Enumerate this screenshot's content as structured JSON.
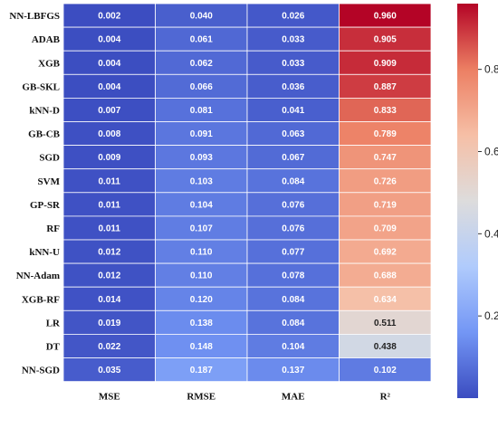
{
  "chart_data": {
    "type": "heatmap",
    "rows": [
      "NN-LBFGS",
      "ADAB",
      "XGB",
      "GB-SKL",
      "kNN-D",
      "GB-CB",
      "SGD",
      "SVM",
      "GP-SR",
      "RF",
      "kNN-U",
      "NN-Adam",
      "XGB-RF",
      "LR",
      "DT",
      "NN-SGD"
    ],
    "columns": [
      "MSE",
      "RMSE",
      "MAE",
      "R²"
    ],
    "values": [
      [
        0.002,
        0.04,
        0.026,
        0.96
      ],
      [
        0.004,
        0.061,
        0.033,
        0.905
      ],
      [
        0.004,
        0.062,
        0.033,
        0.909
      ],
      [
        0.004,
        0.066,
        0.036,
        0.887
      ],
      [
        0.007,
        0.081,
        0.041,
        0.833
      ],
      [
        0.008,
        0.091,
        0.063,
        0.789
      ],
      [
        0.009,
        0.093,
        0.067,
        0.747
      ],
      [
        0.011,
        0.103,
        0.084,
        0.726
      ],
      [
        0.011,
        0.104,
        0.076,
        0.719
      ],
      [
        0.011,
        0.107,
        0.076,
        0.709
      ],
      [
        0.012,
        0.11,
        0.077,
        0.692
      ],
      [
        0.012,
        0.11,
        0.078,
        0.688
      ],
      [
        0.014,
        0.12,
        0.084,
        0.634
      ],
      [
        0.019,
        0.138,
        0.084,
        0.511
      ],
      [
        0.022,
        0.148,
        0.104,
        0.438
      ],
      [
        0.035,
        0.187,
        0.137,
        0.102
      ]
    ],
    "value_labels": [
      [
        "0.002",
        "0.040",
        "0.026",
        "0.960"
      ],
      [
        "0.004",
        "0.061",
        "0.033",
        "0.905"
      ],
      [
        "0.004",
        "0.062",
        "0.033",
        "0.909"
      ],
      [
        "0.004",
        "0.066",
        "0.036",
        "0.887"
      ],
      [
        "0.007",
        "0.081",
        "0.041",
        "0.833"
      ],
      [
        "0.008",
        "0.091",
        "0.063",
        "0.789"
      ],
      [
        "0.009",
        "0.093",
        "0.067",
        "0.747"
      ],
      [
        "0.011",
        "0.103",
        "0.084",
        "0.726"
      ],
      [
        "0.011",
        "0.104",
        "0.076",
        "0.719"
      ],
      [
        "0.011",
        "0.107",
        "0.076",
        "0.709"
      ],
      [
        "0.012",
        "0.110",
        "0.077",
        "0.692"
      ],
      [
        "0.012",
        "0.110",
        "0.078",
        "0.688"
      ],
      [
        "0.014",
        "0.120",
        "0.084",
        "0.634"
      ],
      [
        "0.019",
        "0.138",
        "0.084",
        "0.511"
      ],
      [
        "0.022",
        "0.148",
        "0.104",
        "0.438"
      ],
      [
        "0.035",
        "0.187",
        "0.137",
        "0.102"
      ]
    ],
    "colorbar": {
      "min": 0.0,
      "max": 0.96,
      "ticks": [
        0.2,
        0.4,
        0.6,
        0.8
      ],
      "tick_labels": [
        "0.2",
        "0.4",
        "0.6",
        "0.8"
      ],
      "colormap": "coolwarm",
      "stops": [
        "#3b4cc0",
        "#7396f5",
        "#b0cbfc",
        "#dddcdc",
        "#f6bfa6",
        "#ec7f63",
        "#b40426"
      ]
    },
    "title": "",
    "xlabel": "",
    "ylabel": ""
  }
}
